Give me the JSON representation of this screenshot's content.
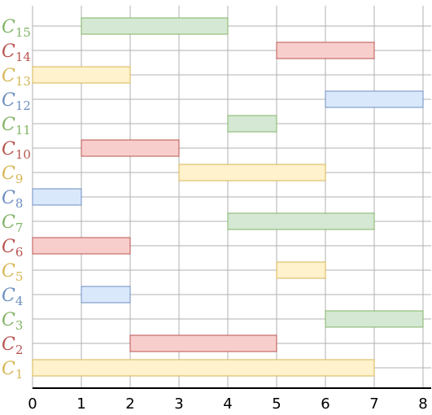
{
  "colors": {
    "yellow": {
      "fill": "#fff2cc",
      "stroke": "#d6b656"
    },
    "red": {
      "fill": "#f8cecc",
      "stroke": "#b85450"
    },
    "green": {
      "fill": "#d5e8d4",
      "stroke": "#82b366"
    },
    "blue": {
      "fill": "#dae8fc",
      "stroke": "#6c8ebf"
    },
    "grid": "#b0b0b0",
    "axis": "#000000"
  },
  "chart_data": {
    "type": "gantt",
    "xlim": [
      0,
      8
    ],
    "x_ticks": [
      "0",
      "1",
      "2",
      "3",
      "4",
      "5",
      "6",
      "7",
      "8"
    ],
    "grid": true,
    "rows": [
      {
        "base": "C",
        "sub": "15",
        "start": 1,
        "end": 4,
        "color": "green"
      },
      {
        "base": "C",
        "sub": "14",
        "start": 5,
        "end": 7,
        "color": "red"
      },
      {
        "base": "C",
        "sub": "13",
        "start": 0,
        "end": 2,
        "color": "yellow"
      },
      {
        "base": "C",
        "sub": "12",
        "start": 6,
        "end": 8,
        "color": "blue"
      },
      {
        "base": "C",
        "sub": "11",
        "start": 4,
        "end": 5,
        "color": "green"
      },
      {
        "base": "C",
        "sub": "10",
        "start": 1,
        "end": 3,
        "color": "red"
      },
      {
        "base": "C",
        "sub": "9",
        "start": 3,
        "end": 6,
        "color": "yellow"
      },
      {
        "base": "C",
        "sub": "8",
        "start": 0,
        "end": 1,
        "color": "blue"
      },
      {
        "base": "C",
        "sub": "7",
        "start": 4,
        "end": 7,
        "color": "green"
      },
      {
        "base": "C",
        "sub": "6",
        "start": 0,
        "end": 2,
        "color": "red"
      },
      {
        "base": "C",
        "sub": "5",
        "start": 5,
        "end": 6,
        "color": "yellow"
      },
      {
        "base": "C",
        "sub": "4",
        "start": 1,
        "end": 2,
        "color": "blue"
      },
      {
        "base": "C",
        "sub": "3",
        "start": 6,
        "end": 8,
        "color": "green"
      },
      {
        "base": "C",
        "sub": "2",
        "start": 2,
        "end": 5,
        "color": "red"
      },
      {
        "base": "C",
        "sub": "1",
        "start": 0,
        "end": 7,
        "color": "yellow"
      }
    ]
  }
}
